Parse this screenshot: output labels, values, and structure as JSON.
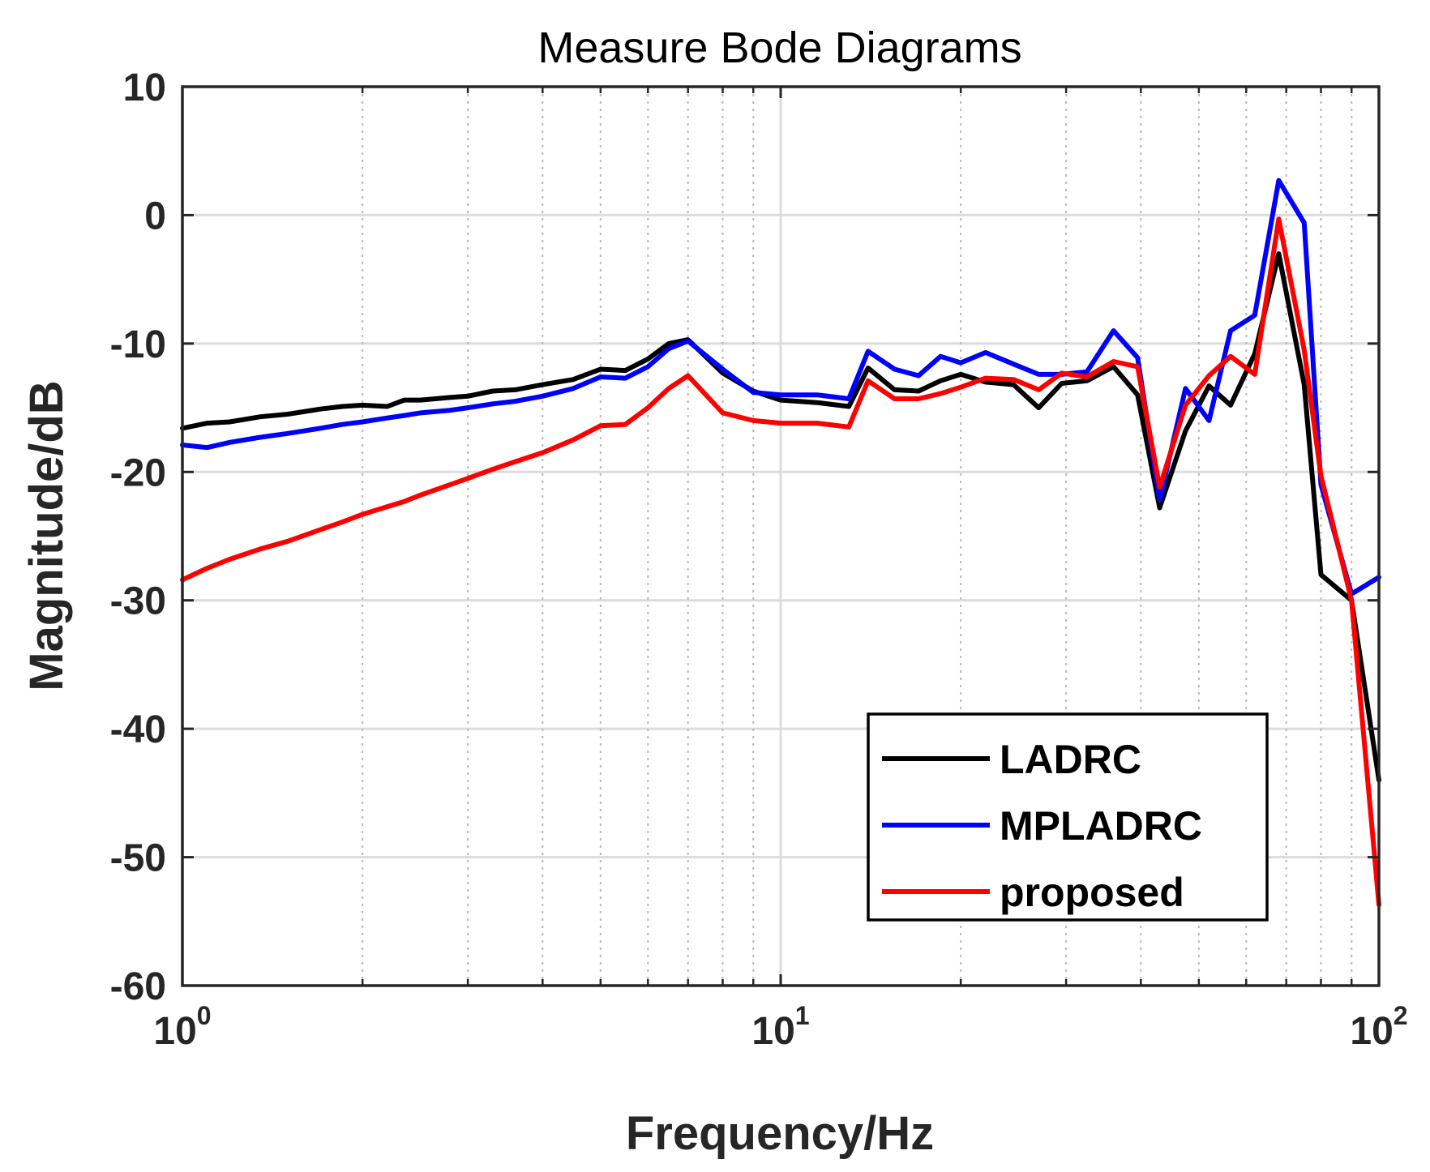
{
  "chart_data": {
    "type": "line",
    "title": "Measure Bode Diagrams",
    "xlabel": "Frequency/Hz",
    "ylabel": "Magnitude/dB",
    "xscale": "log",
    "xlim": [
      1,
      100
    ],
    "ylim": [
      -60,
      10
    ],
    "yticks": [
      10,
      0,
      -10,
      -20,
      -30,
      -40,
      -50,
      -60
    ],
    "ytick_labels": [
      "10",
      "0",
      "-10",
      "-20",
      "-30",
      "-40",
      "-50",
      "-60"
    ],
    "xticks": [
      {
        "value": 1,
        "base": "10",
        "exp": "0"
      },
      {
        "value": 10,
        "base": "10",
        "exp": "1"
      },
      {
        "value": 100,
        "base": "10",
        "exp": "2"
      }
    ],
    "grid": true,
    "legend_position": "bottom-right",
    "series": [
      {
        "name": "LADRC",
        "color": "#000000",
        "x": [
          1,
          1.1,
          1.2,
          1.35,
          1.5,
          1.7,
          1.85,
          2.0,
          2.2,
          2.35,
          2.5,
          2.8,
          3.0,
          3.3,
          3.6,
          4.0,
          4.5,
          5.0,
          5.5,
          6.0,
          6.5,
          7.0,
          8.0,
          9.0,
          10.0,
          11.5,
          13.0,
          14.0,
          15.5,
          17.0,
          18.5,
          20.0,
          22.0,
          24.5,
          27.0,
          29.5,
          32.5,
          36.0,
          39.5,
          43.0,
          47.5,
          52.0,
          56.5,
          62.0,
          68.0,
          75.0,
          80.0,
          90.0,
          100.0
        ],
        "y": [
          -16.6,
          -16.2,
          -16.1,
          -15.7,
          -15.5,
          -15.1,
          -14.9,
          -14.8,
          -14.9,
          -14.4,
          -14.4,
          -14.2,
          -14.1,
          -13.7,
          -13.6,
          -13.2,
          -12.8,
          -12.0,
          -12.1,
          -11.2,
          -10.0,
          -9.7,
          -12.3,
          -13.7,
          -14.4,
          -14.6,
          -14.9,
          -11.9,
          -13.6,
          -13.7,
          -12.9,
          -12.4,
          -13.0,
          -13.2,
          -15.0,
          -13.1,
          -12.9,
          -11.8,
          -14.0,
          -22.8,
          -16.8,
          -13.3,
          -14.8,
          -10.8,
          -3.0,
          -13.2,
          -28.0,
          -30.0,
          -44.0
        ]
      },
      {
        "name": "MPLADRC",
        "color": "#0000ff",
        "x": [
          1,
          1.1,
          1.2,
          1.35,
          1.5,
          1.7,
          1.85,
          2.0,
          2.2,
          2.35,
          2.5,
          2.8,
          3.0,
          3.3,
          3.6,
          4.0,
          4.5,
          5.0,
          5.5,
          6.0,
          6.5,
          7.0,
          8.0,
          9.0,
          10.0,
          11.5,
          13.0,
          14.0,
          15.5,
          17.0,
          18.5,
          20.0,
          22.0,
          24.5,
          27.0,
          29.5,
          32.5,
          36.0,
          39.5,
          43.0,
          47.5,
          52.0,
          56.5,
          62.0,
          68.0,
          75.0,
          80.0,
          90.0,
          100.0
        ],
        "y": [
          -17.9,
          -18.1,
          -17.7,
          -17.3,
          -17.0,
          -16.6,
          -16.3,
          -16.1,
          -15.8,
          -15.6,
          -15.4,
          -15.2,
          -15.0,
          -14.7,
          -14.5,
          -14.1,
          -13.5,
          -12.6,
          -12.7,
          -11.8,
          -10.4,
          -9.8,
          -12.0,
          -13.8,
          -14.0,
          -14.0,
          -14.3,
          -10.6,
          -12.0,
          -12.5,
          -11.0,
          -11.5,
          -10.7,
          -11.6,
          -12.4,
          -12.4,
          -12.2,
          -9.0,
          -11.1,
          -22.2,
          -13.5,
          -16.0,
          -9.0,
          -7.8,
          2.7,
          -0.6,
          -21.0,
          -29.5,
          -28.2
        ]
      },
      {
        "name": "proposed",
        "color": "#ff0000",
        "x": [
          1,
          1.1,
          1.2,
          1.35,
          1.5,
          1.7,
          1.85,
          2.0,
          2.2,
          2.35,
          2.5,
          2.8,
          3.0,
          3.3,
          3.6,
          4.0,
          4.5,
          5.0,
          5.5,
          6.0,
          6.5,
          7.0,
          8.0,
          9.0,
          10.0,
          11.5,
          13.0,
          14.0,
          15.5,
          17.0,
          18.5,
          20.0,
          22.0,
          24.5,
          27.0,
          29.5,
          32.5,
          36.0,
          39.5,
          43.0,
          47.5,
          52.0,
          56.5,
          62.0,
          68.0,
          75.0,
          80.0,
          90.0,
          100.0
        ],
        "y": [
          -28.4,
          -27.5,
          -26.8,
          -26.0,
          -25.4,
          -24.5,
          -23.9,
          -23.3,
          -22.7,
          -22.3,
          -21.8,
          -21.0,
          -20.5,
          -19.8,
          -19.2,
          -18.5,
          -17.5,
          -16.4,
          -16.3,
          -15.0,
          -13.5,
          -12.5,
          -15.4,
          -16.0,
          -16.2,
          -16.2,
          -16.5,
          -12.9,
          -14.3,
          -14.3,
          -13.9,
          -13.4,
          -12.7,
          -12.8,
          -13.6,
          -12.3,
          -12.6,
          -11.4,
          -11.8,
          -21.2,
          -14.8,
          -12.5,
          -11.0,
          -12.4,
          -0.3,
          -10.5,
          -20.3,
          -30.0,
          -53.7
        ]
      }
    ]
  }
}
